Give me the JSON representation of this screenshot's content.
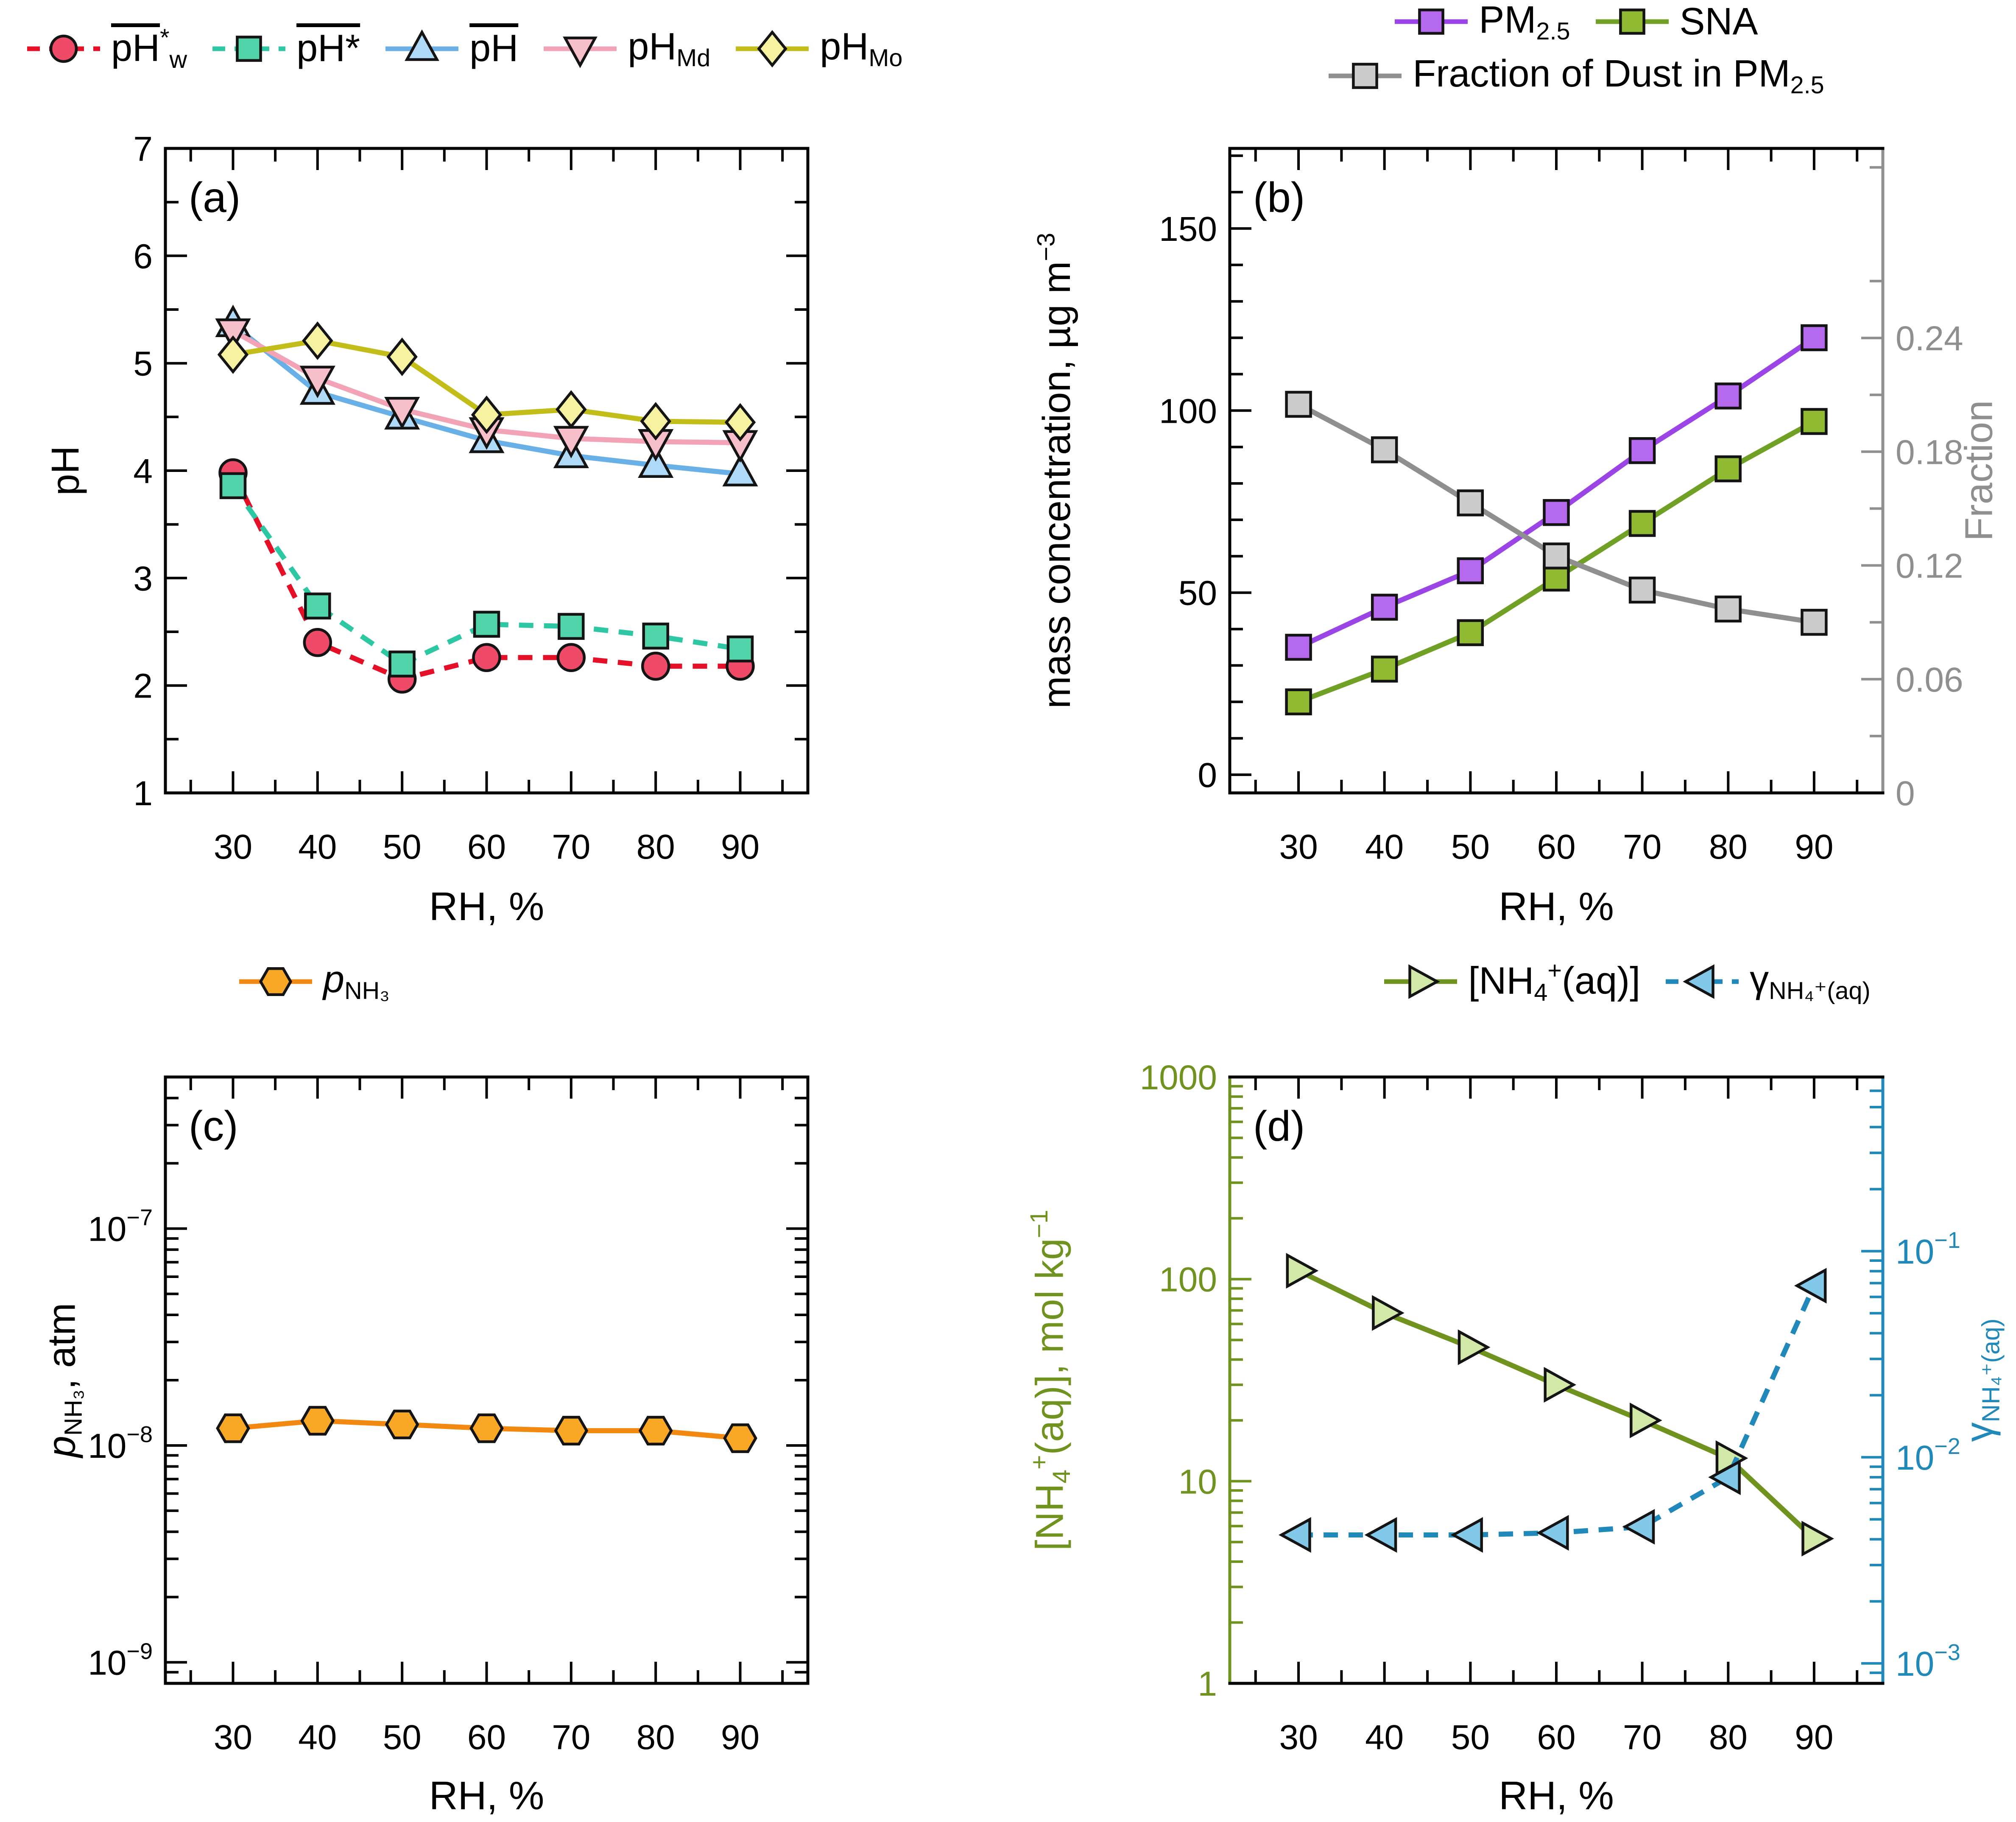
{
  "figure": {
    "background": "#ffffff"
  },
  "chart_data": [
    {
      "id": "a",
      "type": "line",
      "tag": "(a)",
      "xlabel": "RH, %",
      "x": {
        "lim": [
          22,
          98
        ],
        "ticks": [
          30,
          40,
          50,
          60,
          70,
          80,
          90
        ],
        "tick_labels": [
          "30",
          "40",
          "50",
          "60",
          "70",
          "80",
          "90"
        ],
        "minor": [
          25,
          35,
          45,
          55,
          65,
          75,
          85,
          95
        ]
      },
      "left": {
        "type": "linear",
        "lim": [
          1,
          7
        ],
        "ticks": [
          1,
          2,
          3,
          4,
          5,
          6,
          7
        ],
        "tick_labels": [
          "1",
          "2",
          "3",
          "4",
          "5",
          "6",
          "7"
        ],
        "minor": [
          1.5,
          2.5,
          3.5,
          4.5,
          5.5,
          6.5
        ],
        "color": "#000000",
        "label_segments": [
          {
            "t": "pH"
          }
        ]
      },
      "right": null,
      "legend_rows": [
        [
          0,
          1,
          2,
          3,
          4
        ]
      ],
      "series": [
        {
          "name": "ph-w-star-mean",
          "axis": "left",
          "marker": "circle",
          "marker_fill": "#ef4b68",
          "marker_edge": "#141414",
          "line_color": "#e60f28",
          "line_style": "dashed",
          "label_segments": [
            {
              "t": "pH",
              "ov": 1
            },
            {
              "t": "*",
              "sup": 1
            },
            {
              "t": "w",
              "sub": 1
            }
          ],
          "x": [
            30,
            40,
            50,
            60,
            70,
            80,
            90
          ],
          "y": [
            3.98,
            2.4,
            2.06,
            2.26,
            2.26,
            2.18,
            2.18
          ]
        },
        {
          "name": "ph-star-mean",
          "axis": "left",
          "marker": "square",
          "marker_fill": "#52d4ab",
          "marker_edge": "#141414",
          "line_color": "#2ec7a3",
          "line_style": "dashed",
          "label_segments": [
            {
              "t": "pH*",
              "ov": 1
            }
          ],
          "x": [
            30,
            40,
            50,
            60,
            70,
            80,
            90
          ],
          "y": [
            3.86,
            2.74,
            2.2,
            2.57,
            2.55,
            2.46,
            2.34
          ]
        },
        {
          "name": "ph-mean",
          "axis": "left",
          "marker": "triangle-up",
          "marker_fill": "#aed9f7",
          "marker_edge": "#141414",
          "line_color": "#69b0e6",
          "line_style": "solid",
          "label_segments": [
            {
              "t": "pH",
              "ov": 1
            }
          ],
          "x": [
            30,
            40,
            50,
            60,
            70,
            80,
            90
          ],
          "y": [
            5.36,
            4.73,
            4.5,
            4.28,
            4.14,
            4.05,
            3.97
          ]
        },
        {
          "name": "ph-md",
          "axis": "left",
          "marker": "triangle-down",
          "marker_fill": "#f7bfca",
          "marker_edge": "#141414",
          "line_color": "#f2a3b6",
          "line_style": "solid",
          "label_segments": [
            {
              "t": "pH"
            },
            {
              "t": "Md",
              "sub": 1
            }
          ],
          "x": [
            30,
            40,
            50,
            60,
            70,
            80,
            90
          ],
          "y": [
            5.3,
            4.86,
            4.57,
            4.38,
            4.3,
            4.27,
            4.26
          ]
        },
        {
          "name": "ph-mo",
          "axis": "left",
          "marker": "diamond",
          "marker_fill": "#f6f2a0",
          "marker_edge": "#141414",
          "line_color": "#c3bd1a",
          "line_style": "solid",
          "label_segments": [
            {
              "t": "pH"
            },
            {
              "t": "Mo",
              "sub": 1
            }
          ],
          "x": [
            30,
            40,
            50,
            60,
            70,
            80,
            90
          ],
          "y": [
            5.08,
            5.21,
            5.06,
            4.52,
            4.57,
            4.46,
            4.45
          ]
        }
      ]
    },
    {
      "id": "b",
      "type": "line",
      "tag": "(b)",
      "xlabel": "RH, %",
      "x": {
        "lim": [
          22,
          98
        ],
        "ticks": [
          30,
          40,
          50,
          60,
          70,
          80,
          90
        ],
        "tick_labels": [
          "30",
          "40",
          "50",
          "60",
          "70",
          "80",
          "90"
        ],
        "minor": [
          25,
          35,
          45,
          55,
          65,
          75,
          85,
          95
        ]
      },
      "left": {
        "type": "linear",
        "lim": [
          -5,
          172
        ],
        "ticks": [
          0,
          50,
          100,
          150
        ],
        "tick_labels": [
          "0",
          "50",
          "100",
          "150"
        ],
        "minor": [
          10,
          20,
          30,
          40,
          60,
          70,
          80,
          90,
          110,
          120,
          130,
          140,
          160,
          170
        ],
        "color": "#000000",
        "label_segments": [
          {
            "t": "mass concentration, µg m"
          },
          {
            "t": "−3",
            "sup": 1
          }
        ]
      },
      "right": {
        "type": "linear",
        "lim": [
          0,
          0.34
        ],
        "ticks": [
          0,
          0.06,
          0.12,
          0.18,
          0.24
        ],
        "tick_labels": [
          "0",
          "0.06",
          "0.12",
          "0.18",
          "0.24"
        ],
        "minor": [
          0.03,
          0.09,
          0.15,
          0.21,
          0.27,
          0.33
        ],
        "color": "#8f8f8f",
        "label_segments": [
          {
            "t": "Fraction"
          }
        ]
      },
      "legend_rows": [
        [
          0,
          1
        ],
        [
          2
        ]
      ],
      "series": [
        {
          "name": "pm25",
          "axis": "left",
          "marker": "square",
          "marker_fill": "#b469ef",
          "marker_edge": "#141414",
          "line_color": "#9b45e6",
          "line_style": "solid",
          "label_segments": [
            {
              "t": "PM"
            },
            {
              "t": "2.5",
              "sub": 1
            }
          ],
          "x": [
            30,
            40,
            50,
            60,
            70,
            80,
            90
          ],
          "y": [
            35,
            46,
            56,
            72,
            89,
            104,
            120
          ]
        },
        {
          "name": "sna",
          "axis": "left",
          "marker": "square",
          "marker_fill": "#8fba31",
          "marker_edge": "#141414",
          "line_color": "#70a024",
          "line_style": "solid",
          "label_segments": [
            {
              "t": "SNA"
            }
          ],
          "x": [
            30,
            40,
            50,
            60,
            70,
            80,
            90
          ],
          "y": [
            20,
            29,
            39,
            54,
            69,
            84,
            97
          ]
        },
        {
          "name": "dust-fraction",
          "axis": "right",
          "marker": "square",
          "marker_fill": "#cccccc",
          "marker_edge": "#141414",
          "line_color": "#8f8f8f",
          "line_style": "solid",
          "label_segments": [
            {
              "t": "Fraction of Dust in PM"
            },
            {
              "t": "2.5",
              "sub": 1
            }
          ],
          "x": [
            30,
            40,
            50,
            60,
            70,
            80,
            90
          ],
          "y": [
            0.205,
            0.181,
            0.153,
            0.125,
            0.107,
            0.097,
            0.09
          ]
        }
      ]
    },
    {
      "id": "c",
      "type": "line",
      "tag": "(c)",
      "xlabel": "RH, %",
      "x": {
        "lim": [
          22,
          98
        ],
        "ticks": [
          30,
          40,
          50,
          60,
          70,
          80,
          90
        ],
        "tick_labels": [
          "30",
          "40",
          "50",
          "60",
          "70",
          "80",
          "90"
        ],
        "minor": [
          25,
          35,
          45,
          55,
          65,
          75,
          85,
          95
        ]
      },
      "left": {
        "type": "log",
        "lim": [
          8e-10,
          5e-07
        ],
        "ticks": [
          1e-07,
          1e-08,
          1e-09
        ],
        "tick_labels": [
          "10^−7",
          "10^−8",
          "10^−9"
        ],
        "color": "#000000",
        "label_segments": [
          {
            "t": "p",
            "i": 1
          },
          {
            "t": "NH₃",
            "sub": 1
          },
          {
            "t": ", atm"
          }
        ]
      },
      "right": null,
      "legend_rows": [
        [
          0
        ]
      ],
      "series": [
        {
          "name": "p-nh3",
          "axis": "left",
          "marker": "hexagon",
          "marker_fill": "#f9a825",
          "marker_edge": "#141414",
          "line_color": "#f28a12",
          "line_style": "solid",
          "label_segments": [
            {
              "t": "p",
              "i": 1
            },
            {
              "t": "NH₃",
              "sub": 1
            }
          ],
          "x": [
            30,
            40,
            50,
            60,
            70,
            80,
            90
          ],
          "y": [
            1.2e-08,
            1.3e-08,
            1.25e-08,
            1.2e-08,
            1.17e-08,
            1.17e-08,
            1.08e-08
          ]
        }
      ]
    },
    {
      "id": "d",
      "type": "line",
      "tag": "(d)",
      "xlabel": "RH, %",
      "x": {
        "lim": [
          22,
          98
        ],
        "ticks": [
          30,
          40,
          50,
          60,
          70,
          80,
          90
        ],
        "tick_labels": [
          "30",
          "40",
          "50",
          "60",
          "70",
          "80",
          "90"
        ],
        "minor": [
          25,
          35,
          45,
          55,
          65,
          75,
          85,
          95
        ]
      },
      "left": {
        "type": "log",
        "lim": [
          1,
          1000
        ],
        "ticks": [
          1,
          10,
          100,
          1000
        ],
        "tick_labels": [
          "1",
          "10",
          "100",
          "1000"
        ],
        "color": "#70931f",
        "label_segments": [
          {
            "t": "[NH"
          },
          {
            "t": "4",
            "sub": 1
          },
          {
            "t": "+",
            "sup": 1
          },
          {
            "t": "(aq)], mol kg"
          },
          {
            "t": "−1",
            "sup": 1
          }
        ]
      },
      "right": {
        "type": "log",
        "lim": [
          0.0008,
          0.7
        ],
        "ticks": [
          0.1,
          0.01,
          0.001
        ],
        "tick_labels": [
          "10^−1",
          "10^−2",
          "10^−3"
        ],
        "color": "#2089ba",
        "label_segments": [
          {
            "t": "γ"
          },
          {
            "t": "NH₄⁺(aq)",
            "sub": 1
          }
        ]
      },
      "legend_rows": [
        [
          0,
          1
        ]
      ],
      "series": [
        {
          "name": "nh4-aq",
          "axis": "left",
          "marker": "triangle-right",
          "marker_fill": "#d2e8a6",
          "marker_edge": "#141414",
          "line_color": "#70931f",
          "line_style": "solid",
          "label_segments": [
            {
              "t": "[NH"
            },
            {
              "t": "4",
              "sub": 1
            },
            {
              "t": "+",
              "sup": 1
            },
            {
              "t": "(aq)]"
            }
          ],
          "x": [
            30,
            40,
            50,
            60,
            70,
            80,
            90
          ],
          "y": [
            110,
            68,
            46,
            30,
            20,
            13,
            5.2
          ]
        },
        {
          "name": "gamma-nh4-aq",
          "axis": "right",
          "marker": "triangle-left",
          "marker_fill": "#82c8e8",
          "marker_edge": "#141414",
          "line_color": "#2089ba",
          "line_style": "dashed",
          "label_segments": [
            {
              "t": "γ"
            },
            {
              "t": "NH₄⁺(aq)",
              "sub": 1
            }
          ],
          "x": [
            30,
            40,
            50,
            60,
            70,
            80,
            90
          ],
          "y": [
            0.0042,
            0.0042,
            0.0042,
            0.0043,
            0.0046,
            0.008,
            0.068
          ]
        }
      ]
    }
  ]
}
